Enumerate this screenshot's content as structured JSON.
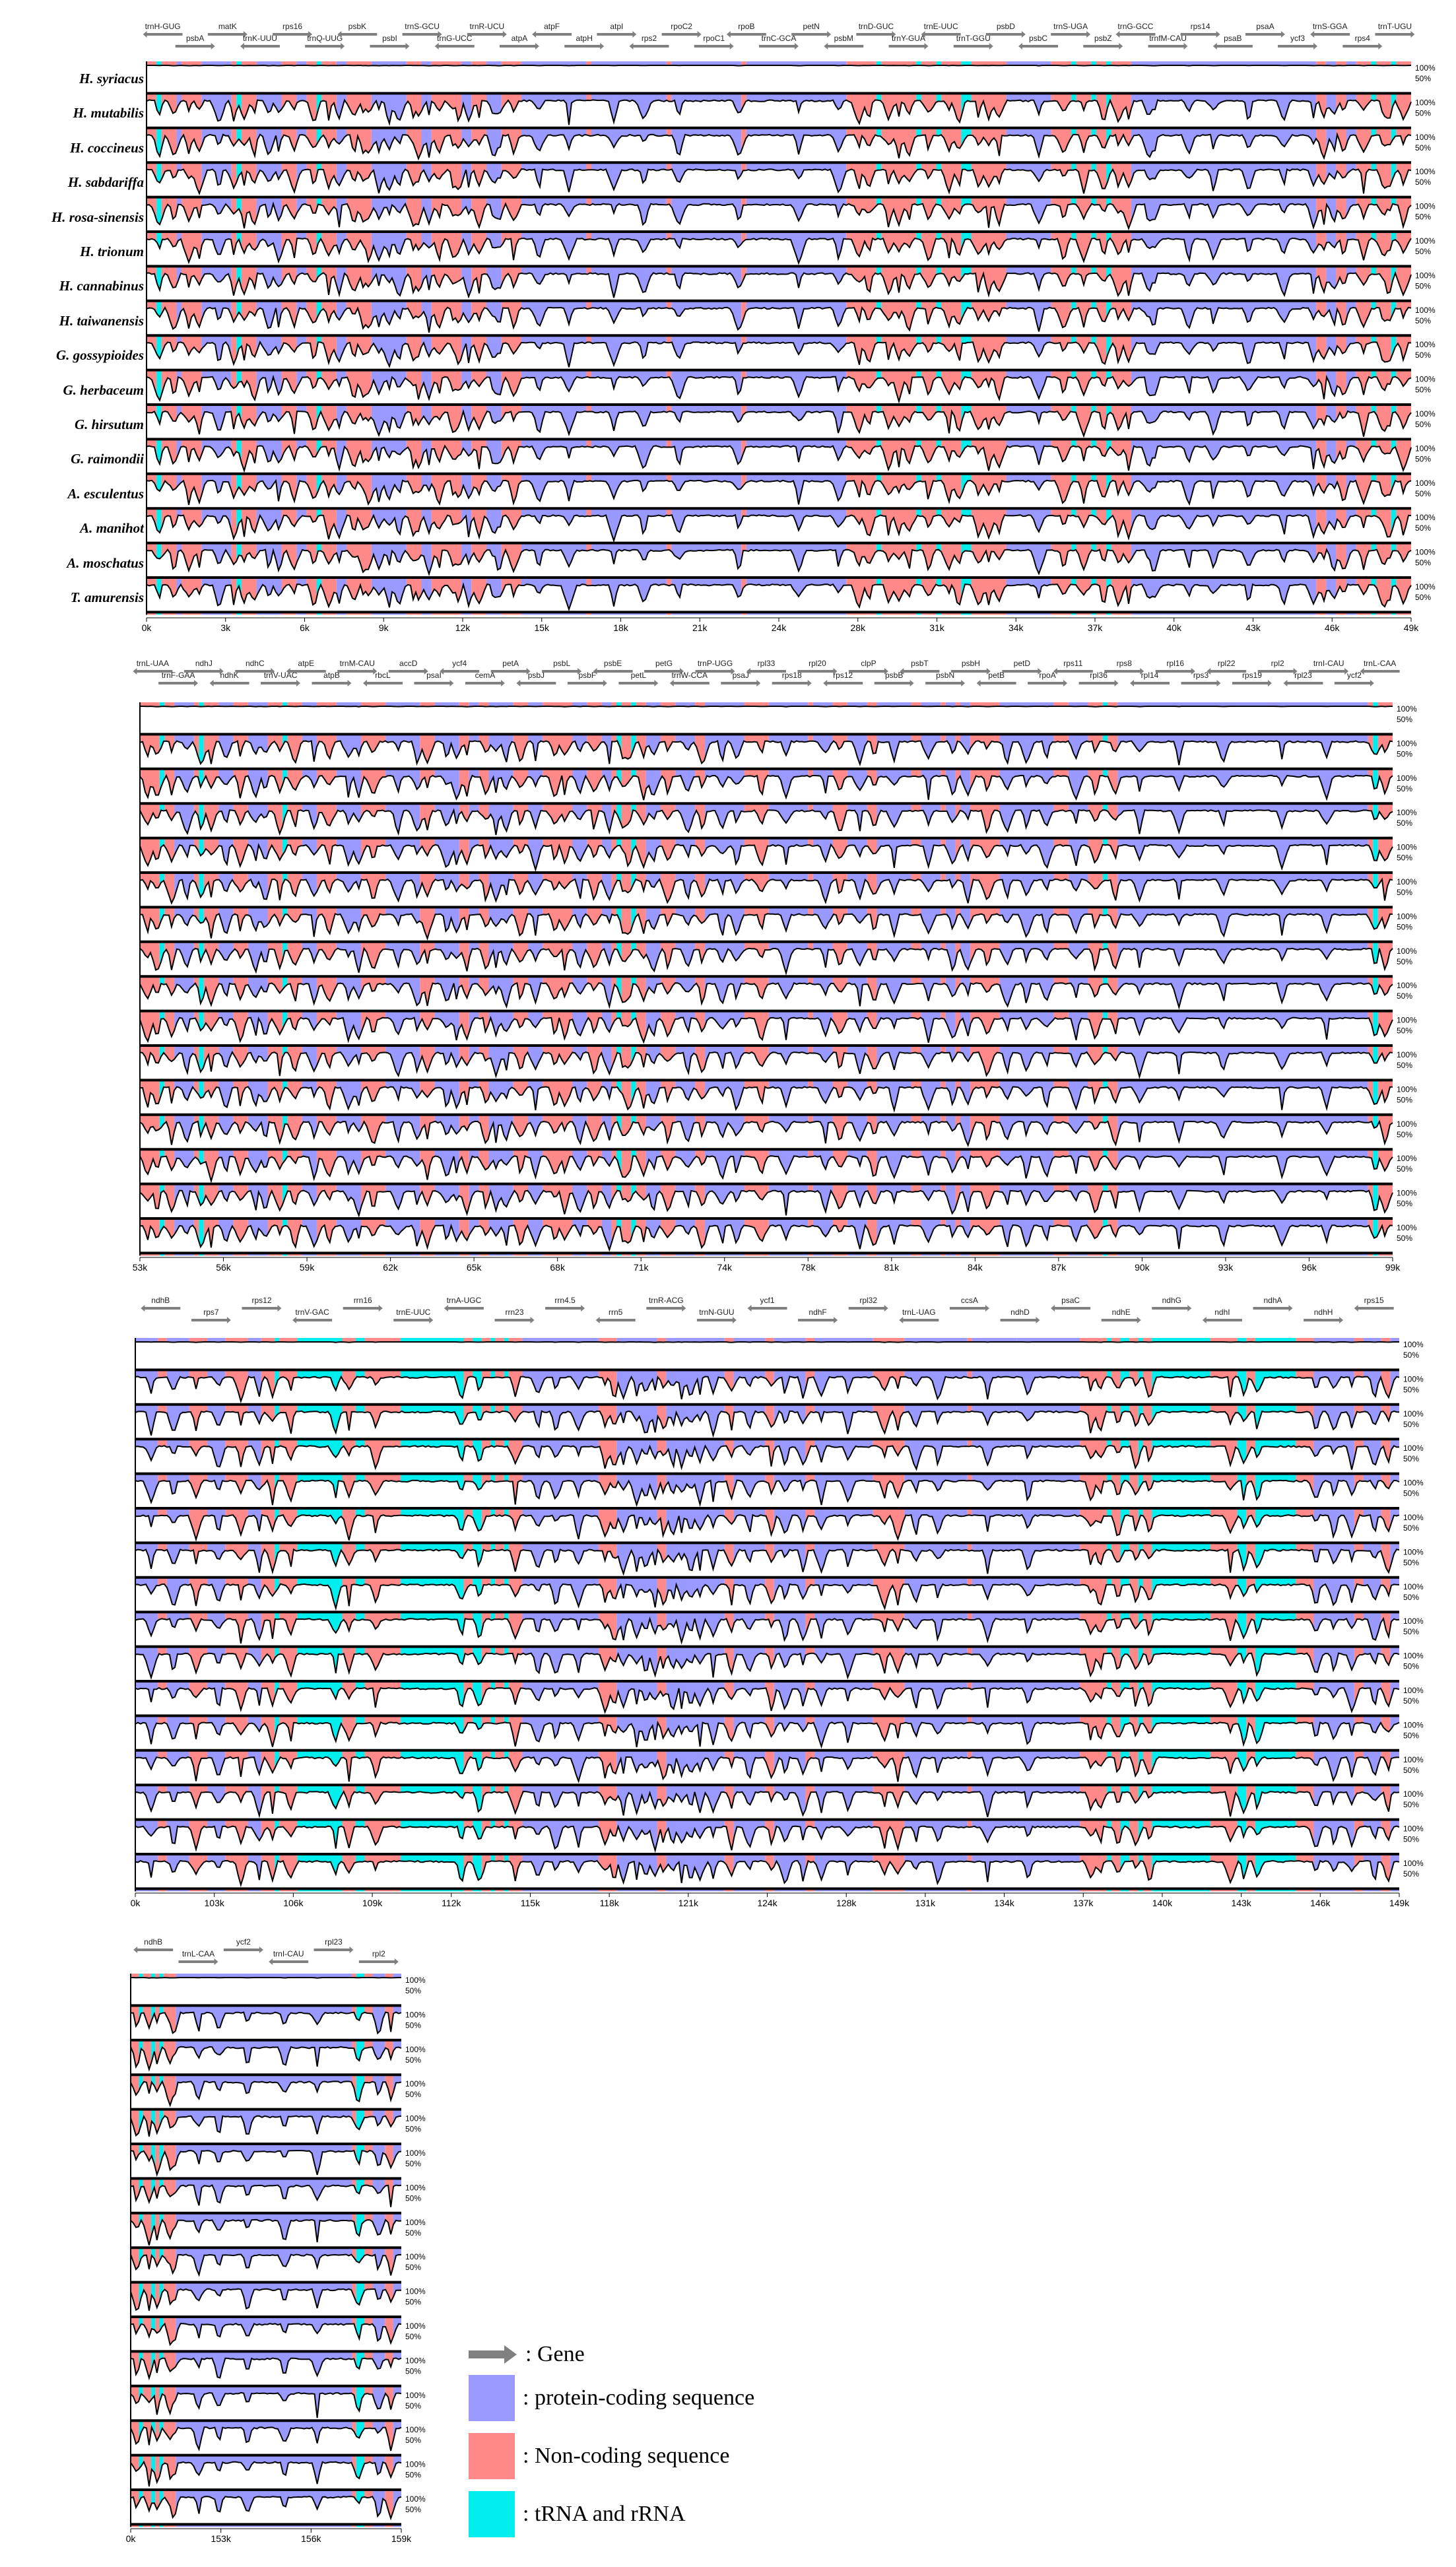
{
  "species": [
    "H. syriacus",
    "H. mutabilis",
    "H. coccineus",
    "H. sabdariffa",
    "H. rosa-sinensis",
    "H. trionum",
    "H. cannabinus",
    "H. taiwanensis",
    "G. gossypioides",
    "G. herbaceum",
    "G. hirsutum",
    "G. raimondii",
    "A. esculentus",
    "A. manihot",
    "A. moschatus",
    "T. amurensis"
  ],
  "colors": {
    "protein_coding": "#9999ff",
    "non_coding": "#ff8888",
    "trna_rrna": "#00eeee",
    "gene_arrow": "#808080",
    "curve_fill": "#ffffff",
    "curve_line": "#000000"
  },
  "row_axis_labels": [
    "50%",
    "100%"
  ],
  "legend": {
    "gene": ": Gene",
    "protein_coding": ": protein-coding sequence",
    "non_coding": ": Non-coding sequence",
    "trna_rrna": ": tRNA and rRNA"
  },
  "chart_data": [
    {
      "type": "area",
      "panel": "1",
      "x_range": [
        0,
        50000
      ],
      "x_ticks": [
        "0k",
        "3k",
        "6k",
        "9k",
        "12k",
        "15k",
        "18k",
        "21k",
        "24k",
        "28k",
        "31k",
        "34k",
        "37k",
        "40k",
        "43k",
        "46k",
        "49k"
      ],
      "genes": [
        "trnH-GUG",
        "psbA",
        "matK",
        "trnK-UUU",
        "rps16",
        "trnQ-UUG",
        "psbK",
        "psbI",
        "trnS-GCU",
        "trnG-UCC",
        "trnR-UCU",
        "atpA",
        "atpF",
        "atpH",
        "atpI",
        "rps2",
        "rpoC2",
        "rpoC1",
        "rpoB",
        "trnC-GCA",
        "petN",
        "psbM",
        "trnD-GUC",
        "trnY-GUA",
        "trnE-UUC",
        "trnT-GGU",
        "psbD",
        "psbC",
        "trnS-UGA",
        "psbZ",
        "trnG-GCC",
        "trnfM-CAU",
        "rps14",
        "psaB",
        "psaA",
        "ycf3",
        "trnS-GGA",
        "rps4",
        "trnT-UGU"
      ],
      "segments": [
        [
          "n",
          0,
          2
        ],
        [
          "t",
          2,
          3
        ],
        [
          "n",
          3,
          6
        ],
        [
          "p",
          6,
          7
        ],
        [
          "n",
          7,
          11
        ],
        [
          "p",
          11,
          17
        ],
        [
          "n",
          17,
          18
        ],
        [
          "t",
          18,
          19
        ],
        [
          "n",
          19,
          22
        ],
        [
          "p",
          22,
          27
        ],
        [
          "n",
          27,
          30
        ],
        [
          "p",
          30,
          32
        ],
        [
          "n",
          32,
          34
        ],
        [
          "t",
          34,
          35
        ],
        [
          "n",
          35,
          38
        ],
        [
          "p",
          38,
          40
        ],
        [
          "n",
          40,
          45
        ],
        [
          "p",
          45,
          52
        ],
        [
          "n",
          52,
          55
        ],
        [
          "p",
          55,
          57
        ],
        [
          "n",
          57,
          63
        ],
        [
          "p",
          63,
          65
        ],
        [
          "n",
          65,
          68
        ],
        [
          "p",
          68,
          71
        ],
        [
          "n",
          71,
          75
        ],
        [
          "p",
          75,
          88
        ],
        [
          "n",
          88,
          89
        ],
        [
          "p",
          89,
          104
        ],
        [
          "n",
          104,
          105
        ],
        [
          "p",
          105,
          119
        ],
        [
          "n",
          119,
          120
        ],
        [
          "p",
          120,
          140
        ],
        [
          "n",
          140,
          146
        ],
        [
          "t",
          146,
          147
        ],
        [
          "n",
          147,
          154
        ],
        [
          "t",
          154,
          155
        ],
        [
          "n",
          155,
          158
        ],
        [
          "t",
          158,
          159
        ],
        [
          "n",
          159,
          163
        ],
        [
          "t",
          163,
          165
        ],
        [
          "n",
          165,
          172
        ],
        [
          "p",
          172,
          181
        ],
        [
          "n",
          181,
          185
        ],
        [
          "t",
          185,
          186
        ],
        [
          "n",
          186,
          189
        ],
        [
          "t",
          189,
          190
        ],
        [
          "n",
          190,
          192
        ],
        [
          "t",
          192,
          193
        ],
        [
          "n",
          193,
          197
        ],
        [
          "p",
          197,
          204
        ],
        [
          "p",
          204,
          234
        ],
        [
          "n",
          234,
          236
        ],
        [
          "p",
          236,
          238
        ],
        [
          "n",
          238,
          240
        ],
        [
          "p",
          240,
          242
        ],
        [
          "n",
          242,
          245
        ],
        [
          "t",
          245,
          246
        ],
        [
          "n",
          246,
          249
        ],
        [
          "t",
          249,
          250
        ],
        [
          "n",
          250,
          253
        ]
      ],
      "dips": [
        2,
        5,
        8,
        10,
        14,
        17,
        19,
        21,
        24,
        26,
        29,
        33,
        36,
        38,
        41,
        43,
        44,
        46,
        48,
        50,
        53,
        54,
        56,
        58,
        61,
        62,
        64,
        66,
        69,
        70,
        73,
        78,
        84,
        93,
        99,
        106,
        118,
        130,
        138,
        142,
        144,
        148,
        150,
        152,
        156,
        160,
        162,
        166,
        168,
        170,
        178,
        183,
        187,
        191,
        194,
        196,
        200,
        201,
        208,
        213,
        220,
        227,
        233,
        235,
        237,
        239,
        243,
        247,
        248,
        251
      ]
    },
    {
      "type": "area",
      "panel": "2",
      "x_range": [
        50000,
        100000
      ],
      "x_ticks": [
        "53k",
        "56k",
        "59k",
        "62k",
        "65k",
        "68k",
        "71k",
        "74k",
        "78k",
        "81k",
        "84k",
        "87k",
        "90k",
        "93k",
        "96k",
        "99k"
      ],
      "genes": [
        "trnL-UAA",
        "trnF-GAA",
        "ndhJ",
        "ndhK",
        "ndhC",
        "trnV-UAC",
        "atpE",
        "atpB",
        "trnM-CAU",
        "rbcL",
        "accD",
        "psaI",
        "ycf4",
        "cemA",
        "petA",
        "psbJ",
        "psbL",
        "psbF",
        "psbE",
        "petL",
        "petG",
        "trnW-CCA",
        "trnP-UGG",
        "psaJ",
        "rpl33",
        "rps18",
        "rpl20",
        "rps12",
        "clpP",
        "psbB",
        "psbT",
        "psbN",
        "psbH",
        "petB",
        "petD",
        "rpoA",
        "rps11",
        "rpl36",
        "rps8",
        "rpl14",
        "rpl16",
        "rps3",
        "rpl22",
        "rps19",
        "rpl2",
        "rpl23",
        "trnI-CAU",
        "ycf2",
        "trnL-CAA"
      ],
      "segments": [
        [
          "n",
          0,
          4
        ],
        [
          "t",
          4,
          5
        ],
        [
          "n",
          5,
          7
        ],
        [
          "p",
          7,
          11
        ],
        [
          "n",
          11,
          12
        ],
        [
          "t",
          12,
          13
        ],
        [
          "n",
          13,
          16
        ],
        [
          "p",
          16,
          19
        ],
        [
          "n",
          19,
          22
        ],
        [
          "p",
          22,
          26
        ],
        [
          "n",
          26,
          29
        ],
        [
          "t",
          29,
          30
        ],
        [
          "n",
          30,
          33
        ],
        [
          "p",
          33,
          36
        ],
        [
          "n",
          36,
          40
        ],
        [
          "p",
          40,
          45
        ],
        [
          "n",
          45,
          50
        ],
        [
          "p",
          50,
          57
        ],
        [
          "n",
          57,
          60
        ],
        [
          "p",
          60,
          65
        ],
        [
          "n",
          65,
          67
        ],
        [
          "p",
          67,
          69
        ],
        [
          "n",
          69,
          71
        ],
        [
          "p",
          71,
          76
        ],
        [
          "n",
          76,
          79
        ],
        [
          "p",
          79,
          82
        ],
        [
          "n",
          82,
          88
        ],
        [
          "p",
          88,
          91
        ],
        [
          "n",
          91,
          94
        ],
        [
          "p",
          94,
          96
        ],
        [
          "n",
          96,
          97
        ],
        [
          "t",
          97,
          98
        ],
        [
          "n",
          98,
          100
        ],
        [
          "t",
          100,
          101
        ],
        [
          "n",
          101,
          103
        ],
        [
          "p",
          103,
          106
        ],
        [
          "n",
          106,
          109
        ],
        [
          "p",
          109,
          113
        ],
        [
          "n",
          113,
          115
        ],
        [
          "p",
          115,
          123
        ],
        [
          "n",
          123,
          128
        ],
        [
          "p",
          128,
          136
        ],
        [
          "n",
          136,
          137
        ],
        [
          "p",
          137,
          141
        ],
        [
          "n",
          141,
          144
        ],
        [
          "p",
          144,
          148
        ],
        [
          "n",
          148,
          150
        ],
        [
          "p",
          150,
          157
        ],
        [
          "n",
          157,
          159
        ],
        [
          "p",
          159,
          163
        ],
        [
          "n",
          163,
          164
        ],
        [
          "p",
          164,
          166
        ],
        [
          "n",
          166,
          167
        ],
        [
          "p",
          167,
          169
        ],
        [
          "n",
          169,
          175
        ],
        [
          "p",
          175,
          186
        ],
        [
          "n",
          186,
          189
        ],
        [
          "p",
          189,
          193
        ],
        [
          "n",
          193,
          196
        ],
        [
          "t",
          196,
          197
        ],
        [
          "n",
          197,
          199
        ],
        [
          "p",
          199,
          250
        ],
        [
          "n",
          250,
          251
        ],
        [
          "t",
          251,
          252
        ],
        [
          "n",
          252,
          255
        ]
      ],
      "dips": [
        1,
        3,
        6,
        9,
        12,
        14,
        17,
        20,
        23,
        25,
        28,
        31,
        35,
        38,
        42,
        44,
        47,
        52,
        56,
        58,
        62,
        64,
        66,
        70,
        72,
        74,
        77,
        80,
        84,
        86,
        89,
        92,
        95,
        98,
        99,
        102,
        104,
        107,
        111,
        114,
        118,
        121,
        126,
        131,
        139,
        142,
        146,
        149,
        153,
        160,
        165,
        168,
        172,
        176,
        180,
        184,
        190,
        194,
        198,
        203,
        211,
        220,
        232,
        241,
        251,
        253
      ]
    },
    {
      "type": "area",
      "panel": "3",
      "x_range": [
        100000,
        150000
      ],
      "x_ticks": [
        "0k",
        "103k",
        "106k",
        "109k",
        "112k",
        "115k",
        "118k",
        "121k",
        "124k",
        "128k",
        "131k",
        "134k",
        "137k",
        "140k",
        "143k",
        "146k",
        "149k"
      ],
      "genes": [
        "ndhB",
        "rps7",
        "rps12",
        "trnV-GAC",
        "rrn16",
        "trnE-UUC",
        "trnA-UGC",
        "rrn23",
        "rrn4.5",
        "rrn5",
        "trnR-ACG",
        "trnN-GUU",
        "ycf1",
        "ndhF",
        "rpl32",
        "trnL-UAG",
        "ccsA",
        "ndhD",
        "psaC",
        "ndhE",
        "ndhG",
        "ndhI",
        "ndhA",
        "ndhH",
        "rps15"
      ],
      "segments": [
        [
          "p",
          0,
          5
        ],
        [
          "n",
          5,
          7
        ],
        [
          "p",
          7,
          12
        ],
        [
          "n",
          12,
          16
        ],
        [
          "p",
          16,
          20
        ],
        [
          "n",
          20,
          25
        ],
        [
          "p",
          25,
          28
        ],
        [
          "n",
          28,
          31
        ],
        [
          "t",
          31,
          32
        ],
        [
          "n",
          32,
          36
        ],
        [
          "t",
          36,
          46
        ],
        [
          "n",
          46,
          49
        ],
        [
          "t",
          49,
          51
        ],
        [
          "n",
          51,
          59
        ],
        [
          "t",
          59,
          73
        ],
        [
          "n",
          73,
          75
        ],
        [
          "t",
          75,
          77
        ],
        [
          "n",
          77,
          79
        ],
        [
          "t",
          79,
          80
        ],
        [
          "n",
          80,
          82
        ],
        [
          "t",
          82,
          83
        ],
        [
          "n",
          83,
          86
        ],
        [
          "p",
          86,
          103
        ],
        [
          "n",
          103,
          107
        ],
        [
          "p",
          107,
          116
        ],
        [
          "n",
          116,
          118
        ],
        [
          "p",
          118,
          131
        ],
        [
          "n",
          131,
          133
        ],
        [
          "p",
          133,
          140
        ],
        [
          "n",
          140,
          142
        ],
        [
          "p",
          142,
          149
        ],
        [
          "n",
          149,
          151
        ],
        [
          "p",
          151,
          164
        ],
        [
          "n",
          164,
          171
        ],
        [
          "p",
          171,
          185
        ],
        [
          "n",
          185,
          186
        ],
        [
          "p",
          186,
          196
        ],
        [
          "p",
          196,
          210
        ],
        [
          "n",
          210,
          216
        ],
        [
          "t",
          216,
          217
        ],
        [
          "n",
          217,
          219
        ],
        [
          "t",
          219,
          221
        ],
        [
          "n",
          221,
          223
        ],
        [
          "t",
          223,
          224
        ],
        [
          "n",
          224,
          226
        ],
        [
          "t",
          226,
          239
        ],
        [
          "n",
          239,
          245
        ],
        [
          "t",
          245,
          247
        ],
        [
          "n",
          247,
          249
        ],
        [
          "t",
          249,
          258
        ],
        [
          "n",
          258,
          262
        ],
        [
          "p",
          262,
          271
        ],
        [
          "n",
          271,
          273
        ],
        [
          "p",
          273,
          277
        ],
        [
          "n",
          277,
          279
        ],
        [
          "p",
          279,
          281
        ]
      ],
      "dips": [
        3,
        8,
        13,
        18,
        23,
        27,
        30,
        34,
        44,
        47,
        53,
        72,
        76,
        84,
        89,
        93,
        98,
        104,
        106,
        108,
        111,
        113,
        115,
        117,
        119,
        121,
        123,
        125,
        128,
        132,
        136,
        141,
        144,
        148,
        152,
        158,
        166,
        169,
        173,
        178,
        189,
        198,
        212,
        214,
        218,
        222,
        225,
        243,
        246,
        249,
        262,
        266,
        270,
        275,
        278
      ]
    },
    {
      "type": "area",
      "panel": "4",
      "x_range": [
        150000,
        160000
      ],
      "x_ticks": [
        "0k",
        "153k",
        "156k",
        "159k"
      ],
      "genes": [
        "ndhB",
        "trnL-CAA",
        "ycf2",
        "trnI-CAU",
        "rpl23",
        "rpl2"
      ],
      "segments": [
        [
          "n",
          0,
          2
        ],
        [
          "t",
          2,
          3
        ],
        [
          "n",
          3,
          5
        ],
        [
          "t",
          5,
          6
        ],
        [
          "n",
          6,
          7
        ],
        [
          "t",
          7,
          8
        ],
        [
          "n",
          8,
          11
        ],
        [
          "p",
          11,
          54
        ],
        [
          "n",
          54,
          55
        ],
        [
          "t",
          55,
          57
        ],
        [
          "n",
          57,
          59
        ],
        [
          "p",
          59,
          62
        ],
        [
          "n",
          62,
          64
        ],
        [
          "p",
          64,
          66
        ]
      ],
      "dips": [
        1,
        4,
        6,
        9,
        10,
        16,
        21,
        28,
        37,
        45,
        55,
        60,
        63
      ]
    }
  ]
}
